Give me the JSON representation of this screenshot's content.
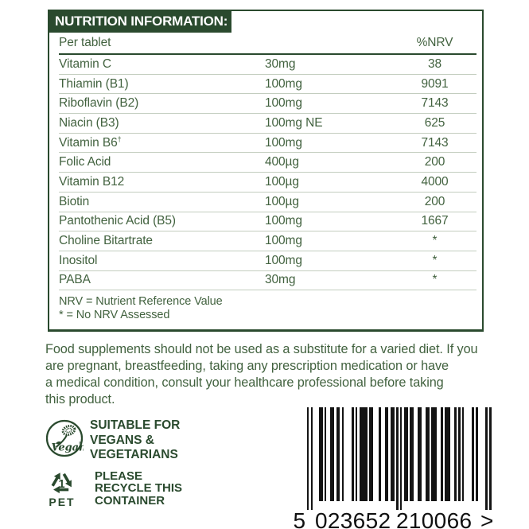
{
  "label": {
    "title": "NUTRITION INFORMATION:",
    "columns": {
      "left": "Per tablet",
      "right": "%NRV"
    },
    "rows": [
      {
        "name": "Vitamin C",
        "sup": "",
        "amount": "30mg",
        "nrv": "38"
      },
      {
        "name": "Thiamin (B1)",
        "sup": "",
        "amount": "100mg",
        "nrv": "9091"
      },
      {
        "name": "Riboflavin (B2)",
        "sup": "",
        "amount": "100mg",
        "nrv": "7143"
      },
      {
        "name": "Niacin (B3)",
        "sup": "",
        "amount": "100mg NE",
        "nrv": "625"
      },
      {
        "name": "Vitamin B6",
        "sup": "†",
        "amount": "100mg",
        "nrv": "7143"
      },
      {
        "name": "Folic Acid",
        "sup": "",
        "amount": "400µg",
        "nrv": "200"
      },
      {
        "name": "Vitamin B12",
        "sup": "",
        "amount": "100µg",
        "nrv": "4000"
      },
      {
        "name": "Biotin",
        "sup": "",
        "amount": "100µg",
        "nrv": "200"
      },
      {
        "name": "Pantothenic Acid (B5)",
        "sup": "",
        "amount": "100mg",
        "nrv": "1667"
      },
      {
        "name": "Choline Bitartrate",
        "sup": "",
        "amount": "100mg",
        "nrv": "*"
      },
      {
        "name": "Inositol",
        "sup": "",
        "amount": "100mg",
        "nrv": "*"
      },
      {
        "name": "PABA",
        "sup": "",
        "amount": "30mg",
        "nrv": "*"
      }
    ],
    "footnotes": [
      "NRV = Nutrient Reference Value",
      "* = No NRV Assessed"
    ]
  },
  "advisory": {
    "lines": [
      "Food supplements should not be used as a substitute for a varied diet. If you",
      "are pregnant, breastfeeding, taking any prescription medication or have",
      "a medical condition, consult your healthcare professional before taking",
      "this product."
    ]
  },
  "badges": {
    "vegan": {
      "logo_word": "Vegan",
      "registered_mark": "®",
      "lines": [
        "SUITABLE FOR",
        "VEGANS &",
        "VEGETARIANS"
      ]
    },
    "recycle": {
      "code_number": "1",
      "material": "PET",
      "lines": [
        "PLEASE",
        "RECYCLE THIS",
        "CONTAINER"
      ]
    }
  },
  "barcode": {
    "value": "5023652210066",
    "first_digit": "5",
    "group1": "023652",
    "group2": "210066",
    "suffix": ">",
    "pattern": "10100011010011011010000101011110110001001101101010110110011001101110010111001010100001010000101"
  },
  "colors": {
    "dark_green": "#2a4a2e",
    "text_green": "#42623f",
    "separator": "#c3cdbf",
    "barcode_black": "#141414"
  }
}
